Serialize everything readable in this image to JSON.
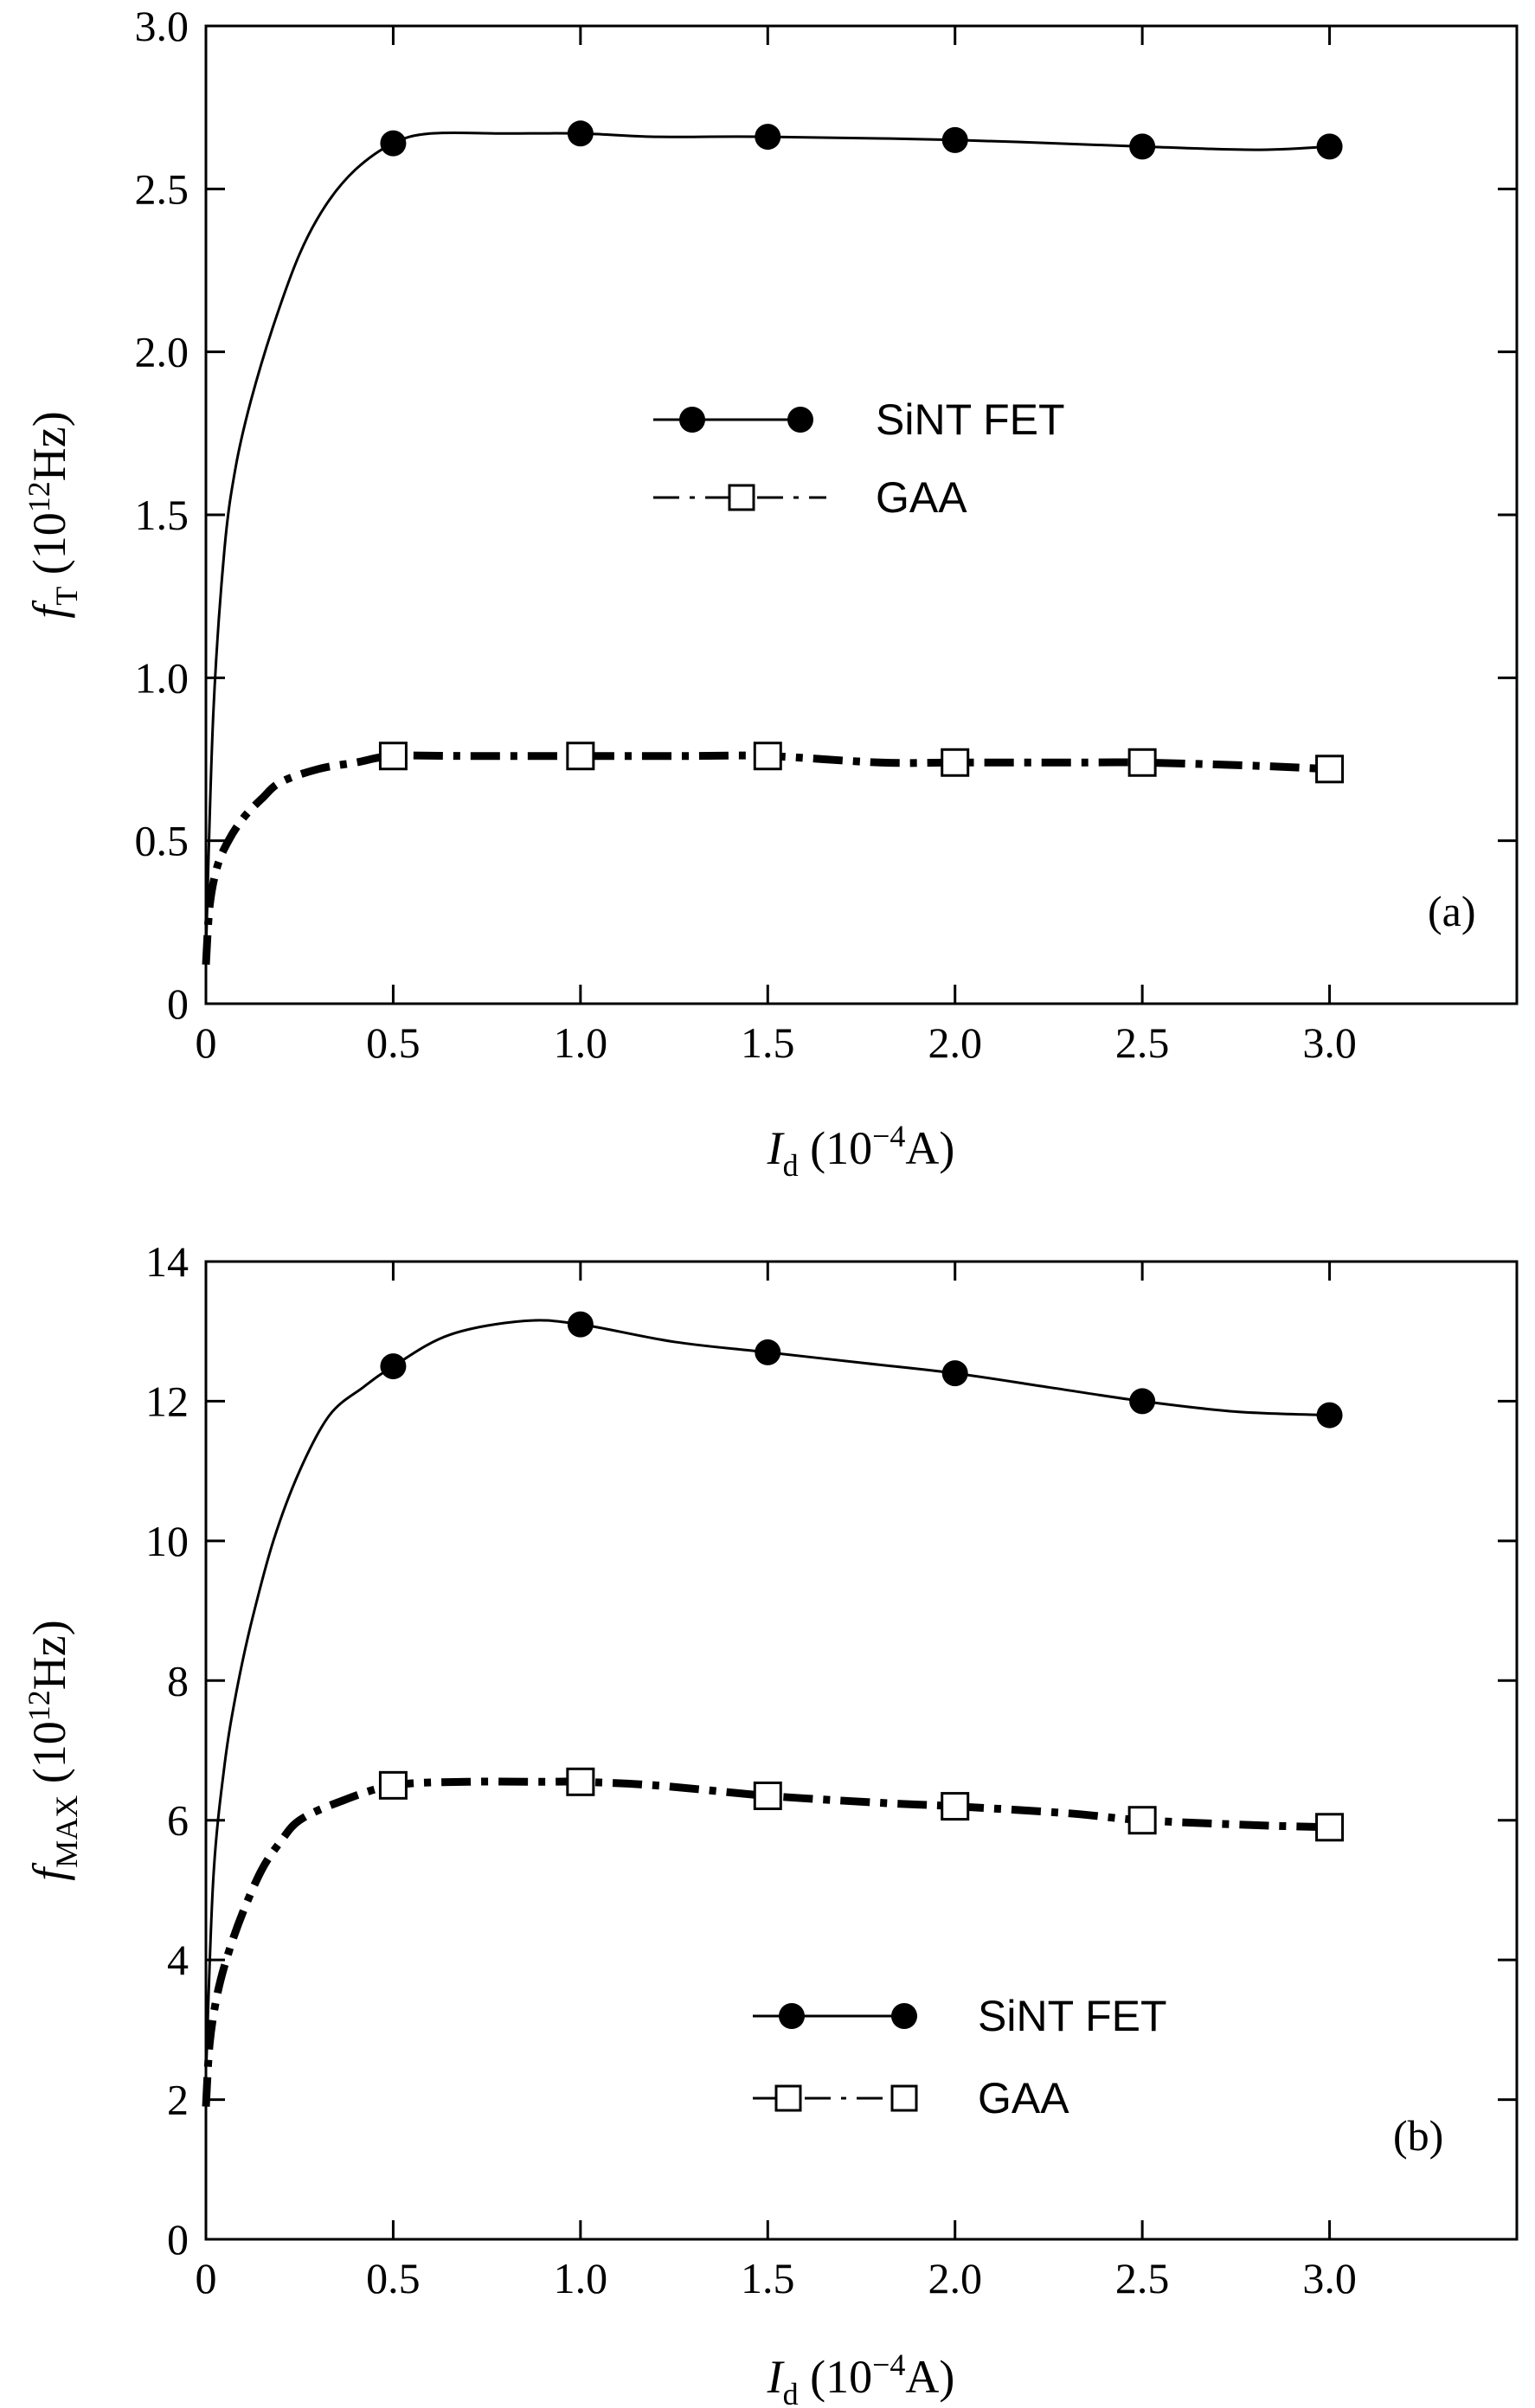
{
  "chart_data": [
    {
      "type": "line",
      "panel_label": "(a)",
      "ylabel": {
        "italic": "f",
        "sub": "T",
        "rest": " (10",
        "sup": "12",
        "rest2": "Hz)"
      },
      "xlabel": {
        "italic": "I",
        "sub": "d",
        "rest": " (10",
        "sup": "−4",
        "rest2": "A)"
      },
      "xlim": [
        0,
        3.5
      ],
      "ylim": [
        0,
        3.0
      ],
      "x_ticks": [
        0,
        0.5,
        1.0,
        1.5,
        2.0,
        2.5,
        3.0
      ],
      "x_tick_labels": [
        "0",
        "0.5",
        "1.0",
        "1.5",
        "2.0",
        "2.5",
        "3.0"
      ],
      "y_ticks": [
        0,
        0.5,
        1.0,
        1.5,
        2.0,
        2.5,
        3.0
      ],
      "y_tick_labels": [
        "0",
        "0.5",
        "1.0",
        "1.5",
        "2.0",
        "2.5",
        "3.0"
      ],
      "legend_position": "center",
      "series": [
        {
          "name": "SiNT FET",
          "style": "solid",
          "marker": "filled-circle",
          "curve_x": [
            0.001,
            0.02,
            0.05,
            0.08,
            0.12,
            0.18,
            0.25,
            0.32,
            0.4,
            0.5,
            0.6,
            0.8,
            1.0,
            1.2,
            1.5,
            2.0,
            2.5,
            2.8,
            3.0
          ],
          "curve_y": [
            0.2,
            0.9,
            1.4,
            1.65,
            1.85,
            2.08,
            2.3,
            2.45,
            2.56,
            2.64,
            2.67,
            2.67,
            2.67,
            2.66,
            2.66,
            2.65,
            2.63,
            2.62,
            2.63
          ],
          "marker_x": [
            0.5,
            1.0,
            1.5,
            2.0,
            2.5,
            3.0
          ],
          "marker_y": [
            2.64,
            2.67,
            2.66,
            2.65,
            2.63,
            2.63
          ]
        },
        {
          "name": "GAA",
          "style": "dash-dot",
          "marker": "open-square",
          "curve_x": [
            0.0,
            0.01,
            0.03,
            0.06,
            0.1,
            0.15,
            0.2,
            0.3,
            0.4,
            0.5,
            0.7,
            1.0,
            1.3,
            1.5,
            1.8,
            2.0,
            2.3,
            2.5,
            2.8,
            3.0
          ],
          "curve_y": [
            0.12,
            0.3,
            0.42,
            0.5,
            0.57,
            0.63,
            0.68,
            0.72,
            0.74,
            0.76,
            0.76,
            0.76,
            0.76,
            0.76,
            0.74,
            0.74,
            0.74,
            0.74,
            0.73,
            0.72
          ],
          "marker_x": [
            0.5,
            1.0,
            1.5,
            2.0,
            2.5,
            3.0
          ],
          "marker_y": [
            0.76,
            0.76,
            0.76,
            0.74,
            0.74,
            0.72
          ]
        }
      ]
    },
    {
      "type": "line",
      "panel_label": "(b)",
      "ylabel": {
        "italic": "f",
        "sub": "MAX",
        "rest": " (10",
        "sup": "12",
        "rest2": "Hz)"
      },
      "xlabel": {
        "italic": "I",
        "sub": "d",
        "rest": " (10",
        "sup": "−4",
        "rest2": "A)"
      },
      "xlim": [
        0,
        3.5
      ],
      "ylim": [
        0,
        14
      ],
      "x_ticks": [
        0,
        0.5,
        1.0,
        1.5,
        2.0,
        2.5,
        3.0
      ],
      "x_tick_labels": [
        "0",
        "0.5",
        "1.0",
        "1.5",
        "2.0",
        "2.5",
        "3.0"
      ],
      "y_ticks": [
        0,
        2,
        4,
        6,
        8,
        10,
        12,
        14
      ],
      "y_tick_labels": [
        "0",
        "2",
        "4",
        "6",
        "8",
        "10",
        "12",
        "14"
      ],
      "legend_position": "lower-center",
      "series": [
        {
          "name": "SiNT FET",
          "style": "solid",
          "marker": "filled-circle",
          "curve_x": [
            0.001,
            0.02,
            0.05,
            0.08,
            0.12,
            0.18,
            0.25,
            0.33,
            0.42,
            0.5,
            0.65,
            0.85,
            1.0,
            1.25,
            1.5,
            1.75,
            2.0,
            2.25,
            2.5,
            2.75,
            3.0
          ],
          "curve_y": [
            2.5,
            5.2,
            6.8,
            7.8,
            8.8,
            10.0,
            11.0,
            11.8,
            12.2,
            12.5,
            12.95,
            13.15,
            13.1,
            12.85,
            12.7,
            12.55,
            12.4,
            12.2,
            12.0,
            11.85,
            11.8
          ],
          "marker_x": [
            0.5,
            1.0,
            1.5,
            2.0,
            2.5,
            3.0
          ],
          "marker_y": [
            12.5,
            13.1,
            12.7,
            12.4,
            12.0,
            11.8
          ]
        },
        {
          "name": "GAA",
          "style": "dash-dot",
          "marker": "open-square",
          "curve_x": [
            0.0,
            0.01,
            0.03,
            0.06,
            0.1,
            0.15,
            0.2,
            0.25,
            0.35,
            0.5,
            0.7,
            0.9,
            1.0,
            1.2,
            1.5,
            1.8,
            2.0,
            2.3,
            2.5,
            2.8,
            3.0
          ],
          "curve_y": [
            1.9,
            2.8,
            3.5,
            4.1,
            4.7,
            5.3,
            5.7,
            6.0,
            6.25,
            6.5,
            6.55,
            6.55,
            6.55,
            6.5,
            6.35,
            6.25,
            6.2,
            6.1,
            6.0,
            5.93,
            5.9
          ],
          "marker_x": [
            0.5,
            1.0,
            1.5,
            2.0,
            2.5,
            3.0
          ],
          "marker_y": [
            6.5,
            6.55,
            6.35,
            6.2,
            6.0,
            5.9
          ]
        }
      ]
    }
  ]
}
